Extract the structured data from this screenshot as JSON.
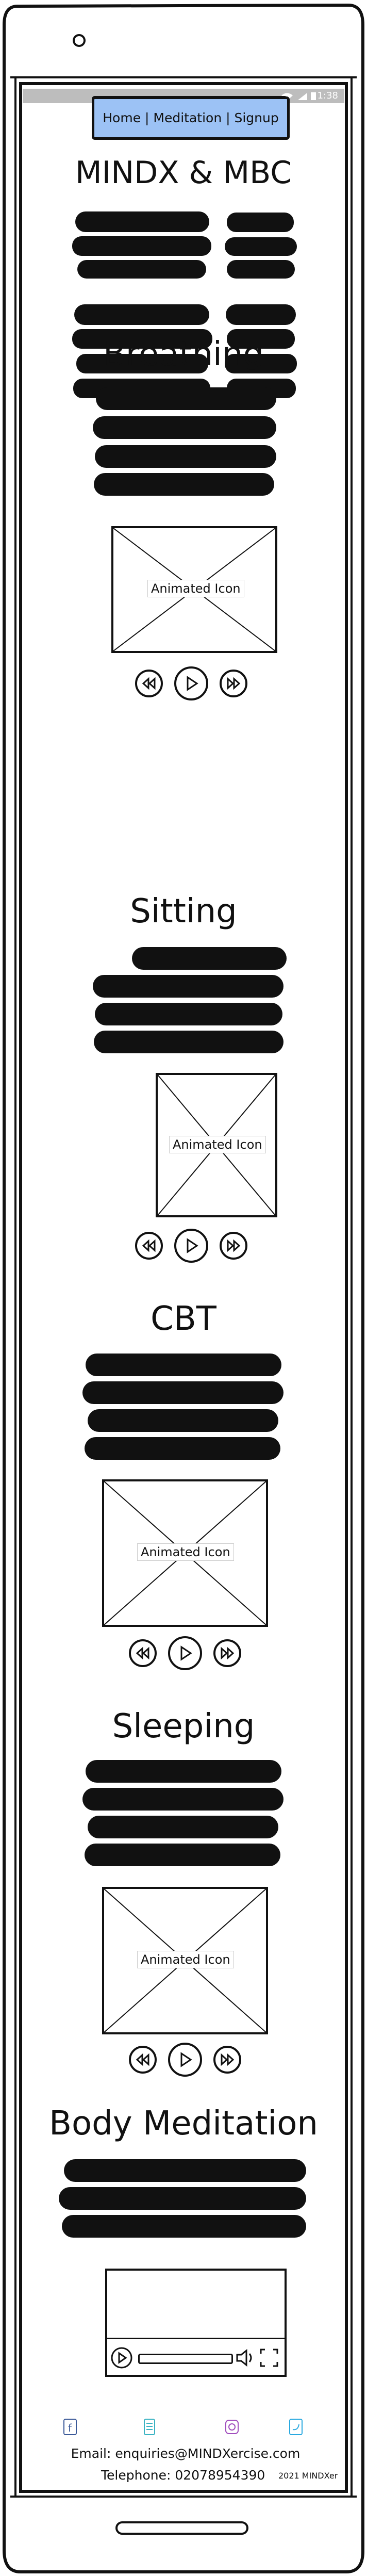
{
  "status_bar": {
    "time": "1:38"
  },
  "header": {
    "app_title": "MINDX",
    "nav_label": "Home | Meditation | Signup"
  },
  "intro": {
    "heading": "MINDX & MBC"
  },
  "sections": [
    {
      "heading": "Breathing",
      "media_label": "Animated Icon"
    },
    {
      "heading": "Sitting",
      "media_label": "Animated Icon"
    },
    {
      "heading": "CBT",
      "media_label": "Animated Icon"
    },
    {
      "heading": "Sleeping",
      "media_label": "Animated Icon"
    },
    {
      "heading": "Body Meditation",
      "media_label": ""
    }
  ],
  "footer": {
    "email": "Email: enquiries@MINDXercise.com",
    "telephone": "Telephone: 02078954390",
    "copyright": "2021 MINDXer"
  },
  "icons": {
    "social": [
      "facebook-icon",
      "tablet-icon",
      "instagram-icon",
      "twitter-icon"
    ]
  },
  "colors": {
    "nav_button": "#9cc2f5",
    "status_bar": "#bdbdbd",
    "social_facebook": "#3b5998",
    "social_tablet": "#3bb3c3",
    "social_instagram": "#a04dbd",
    "social_twitter": "#2aa9e0"
  }
}
